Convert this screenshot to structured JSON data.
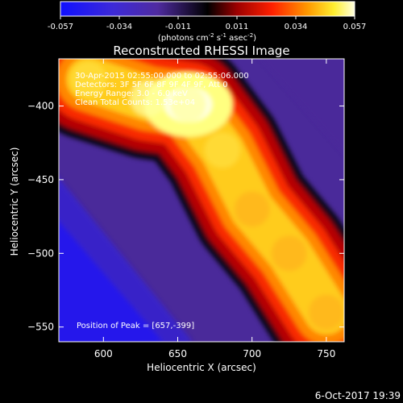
{
  "chart_data": {
    "type": "heatmap",
    "title": "Reconstructed RHESSI Image",
    "xlabel": "Heliocentric X (arcsec)",
    "ylabel": "Heliocentric Y (arcsec)",
    "xlim": [
      570,
      762
    ],
    "ylim": [
      -560,
      -368
    ],
    "x_ticks": [
      600,
      650,
      700,
      750
    ],
    "y_ticks": [
      -550,
      -500,
      -450,
      -400
    ],
    "colorbar": {
      "min": -0.057,
      "max": 0.057,
      "ticks": [
        "-0.057",
        "-0.034",
        "-0.011",
        "0.011",
        "0.034",
        "0.057"
      ],
      "units_label": "(photons cm",
      "units_exp1": "-2",
      "units_mid1": " s",
      "units_exp2": "-1",
      "units_mid2": " asec",
      "units_exp3": "-2",
      "units_end": ")"
    },
    "annotations": [
      "30-Apr-2015 02:55:00.000 to 02:55:06.000",
      "Detectors: 3F 5F 6F 8F 9F 4F 9F, Att 0",
      "Energy Range: 3.0 - 6.0 keV",
      "Clean     Total Counts: 1.53e+04"
    ],
    "peak_label": "Position of Peak = [657,-399]",
    "peak": [
      657,
      -399
    ],
    "ridge": {
      "description": "bright emission band running diagonally from upper-left to lower-right",
      "points": [
        [
          590,
          -382
        ],
        [
          630,
          -395
        ],
        [
          657,
          -399
        ],
        [
          680,
          -430
        ],
        [
          700,
          -470
        ],
        [
          725,
          -500
        ],
        [
          750,
          -540
        ]
      ],
      "values": [
        0.045,
        0.052,
        0.057,
        0.05,
        0.04,
        0.035,
        0.03
      ]
    },
    "colors": {
      "min": "#1010ff",
      "low": "#5a1fb0",
      "mid": "#000000",
      "highmid": "#c80000",
      "high": "#ff8c00",
      "max": "#ffffe0"
    }
  },
  "footer": {
    "date": "6-Oct-2017 19:39"
  }
}
